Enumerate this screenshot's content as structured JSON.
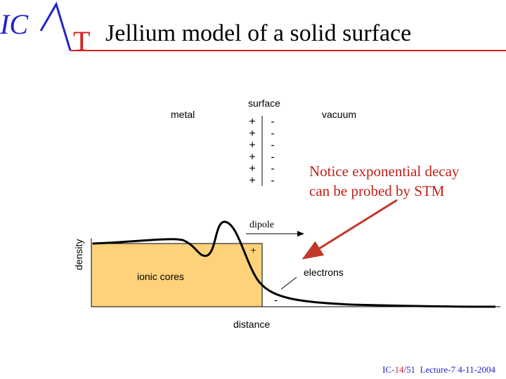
{
  "logo": {
    "left": "IC",
    "right": "T"
  },
  "title": "Jellium model of a solid surface",
  "labels": {
    "metal": "metal",
    "surface": "surface",
    "vacuum": "vacuum",
    "plus": [
      "+",
      "+",
      "+",
      "+",
      "+",
      "+"
    ],
    "minus": [
      "-",
      "-",
      "-",
      "-",
      "-",
      "-"
    ],
    "note": [
      "Notice exponential decay",
      "can be probed by STM"
    ],
    "dipole": "dipole",
    "density": "density",
    "dipole_plus": "+",
    "ionic_cores": "ionic cores",
    "electrons": "electrons",
    "dipole_minus": "-",
    "distance": "distance"
  },
  "footer": {
    "prefix": "IC-",
    "page": "14",
    "suffix": "/51  Lecture-7 4-11-2004"
  }
}
